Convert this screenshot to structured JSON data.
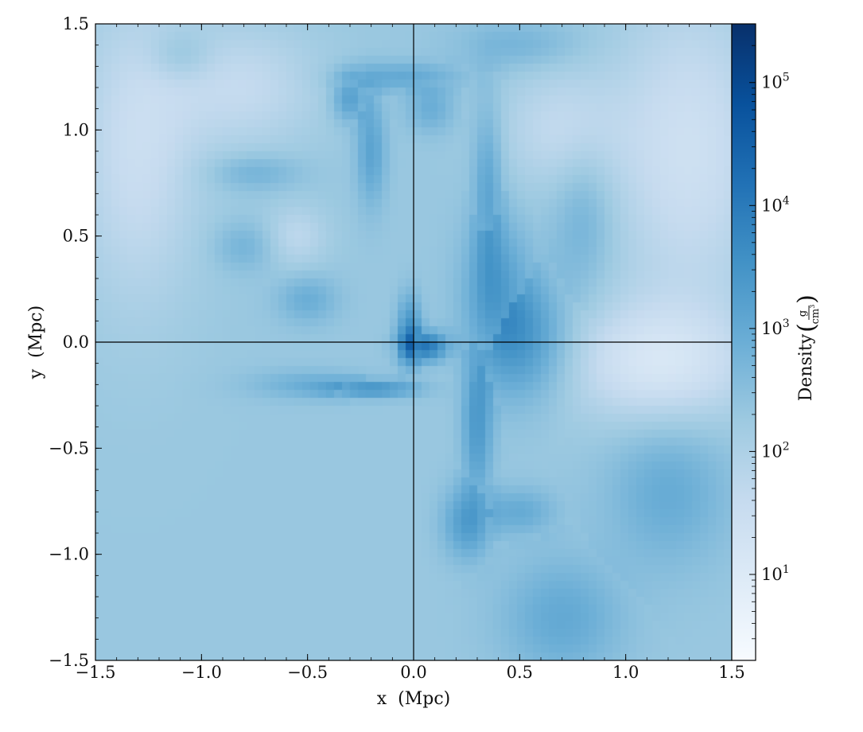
{
  "chart_data": {
    "type": "heatmap",
    "title": "",
    "xlabel": "x  (Mpc)",
    "ylabel": "y  (Mpc)",
    "xlim": [
      -1.5,
      1.5
    ],
    "ylim": [
      -1.5,
      1.5
    ],
    "x_ticks": [
      -1.5,
      -1.0,
      -0.5,
      0.0,
      0.5,
      1.0,
      1.5
    ],
    "x_tick_labels": [
      "−1.5",
      "−1.0",
      "−0.5",
      "0.0",
      "0.5",
      "1.0",
      "1.5"
    ],
    "y_ticks": [
      -1.5,
      -1.0,
      -0.5,
      0.0,
      0.5,
      1.0,
      1.5
    ],
    "y_tick_labels": [
      "−1.5",
      "−1.0",
      "−0.5",
      "0.0",
      "0.5",
      "1.0",
      "1.5"
    ],
    "crosshair": {
      "x": 0.0,
      "y": 0.0
    },
    "colorbar": {
      "label": "Density",
      "unit_numerator": "g",
      "unit_denominator": "cm",
      "unit_denominator_exponent": "3",
      "scale": "log",
      "colormap": "Blues",
      "range": [
        2,
        300000
      ],
      "ticks": [
        10,
        100,
        1000,
        10000,
        100000
      ],
      "tick_labels": [
        {
          "base": "10",
          "exp": "1"
        },
        {
          "base": "10",
          "exp": "2"
        },
        {
          "base": "10",
          "exp": "3"
        },
        {
          "base": "10",
          "exp": "4"
        },
        {
          "base": "10",
          "exp": "5"
        }
      ]
    },
    "background_density": 200,
    "blobs": [
      {
        "x": 0.05,
        "y": -0.02,
        "sx": 0.08,
        "sy": 0.05,
        "v": 200000
      },
      {
        "x": -0.02,
        "y": 0.05,
        "sx": 0.04,
        "sy": 0.12,
        "v": 20000
      },
      {
        "x": -0.3,
        "y": 1.15,
        "sx": 0.06,
        "sy": 0.08,
        "v": 8000
      },
      {
        "x": -0.2,
        "y": 0.9,
        "sx": 0.05,
        "sy": 0.18,
        "v": 5000
      },
      {
        "x": -0.05,
        "y": 1.25,
        "sx": 0.2,
        "sy": 0.05,
        "v": 3000
      },
      {
        "x": 0.08,
        "y": 1.1,
        "sx": 0.08,
        "sy": 0.08,
        "v": 2000
      },
      {
        "x": 0.35,
        "y": 0.7,
        "sx": 0.05,
        "sy": 0.3,
        "v": 5000
      },
      {
        "x": 0.4,
        "y": 0.2,
        "sx": 0.12,
        "sy": 0.25,
        "v": 10000
      },
      {
        "x": 0.55,
        "y": 0.0,
        "sx": 0.15,
        "sy": 0.2,
        "v": 6000
      },
      {
        "x": 0.3,
        "y": -0.4,
        "sx": 0.05,
        "sy": 0.25,
        "v": 10000
      },
      {
        "x": 0.25,
        "y": -0.85,
        "sx": 0.08,
        "sy": 0.12,
        "v": 8000
      },
      {
        "x": 0.5,
        "y": -0.8,
        "sx": 0.12,
        "sy": 0.08,
        "v": 2500
      },
      {
        "x": -0.2,
        "y": -0.22,
        "sx": 0.15,
        "sy": 0.03,
        "v": 20000
      },
      {
        "x": -0.5,
        "y": -0.2,
        "sx": 0.2,
        "sy": 0.05,
        "v": 1500
      },
      {
        "x": -0.5,
        "y": 0.2,
        "sx": 0.1,
        "sy": 0.08,
        "v": 2000
      },
      {
        "x": -0.8,
        "y": 0.45,
        "sx": 0.1,
        "sy": 0.08,
        "v": 1200
      },
      {
        "x": -0.75,
        "y": 0.8,
        "sx": 0.15,
        "sy": 0.06,
        "v": 1500
      },
      {
        "x": -1.1,
        "y": 1.35,
        "sx": 0.1,
        "sy": 0.08,
        "v": 1200
      },
      {
        "x": 0.7,
        "y": -1.3,
        "sx": 0.2,
        "sy": 0.2,
        "v": 3000
      },
      {
        "x": 1.2,
        "y": -0.7,
        "sx": 0.2,
        "sy": 0.25,
        "v": 2500
      },
      {
        "x": 0.8,
        "y": 0.6,
        "sx": 0.1,
        "sy": 0.25,
        "v": 1500
      },
      {
        "x": 0.5,
        "y": 1.4,
        "sx": 0.2,
        "sy": 0.08,
        "v": 1200
      }
    ],
    "voids": [
      {
        "x": 1.15,
        "y": -0.1,
        "sx": 0.3,
        "sy": 0.2,
        "v": 8
      },
      {
        "x": 1.3,
        "y": 0.9,
        "sx": 0.25,
        "sy": 0.5,
        "v": 15
      },
      {
        "x": -1.3,
        "y": 0.9,
        "sx": 0.2,
        "sy": 0.5,
        "v": 20
      },
      {
        "x": 0.7,
        "y": 1.0,
        "sx": 0.2,
        "sy": 0.2,
        "v": 30
      },
      {
        "x": -0.8,
        "y": 1.2,
        "sx": 0.25,
        "sy": 0.2,
        "v": 30
      },
      {
        "x": -0.55,
        "y": 0.5,
        "sx": 0.1,
        "sy": 0.1,
        "v": 40
      }
    ]
  }
}
